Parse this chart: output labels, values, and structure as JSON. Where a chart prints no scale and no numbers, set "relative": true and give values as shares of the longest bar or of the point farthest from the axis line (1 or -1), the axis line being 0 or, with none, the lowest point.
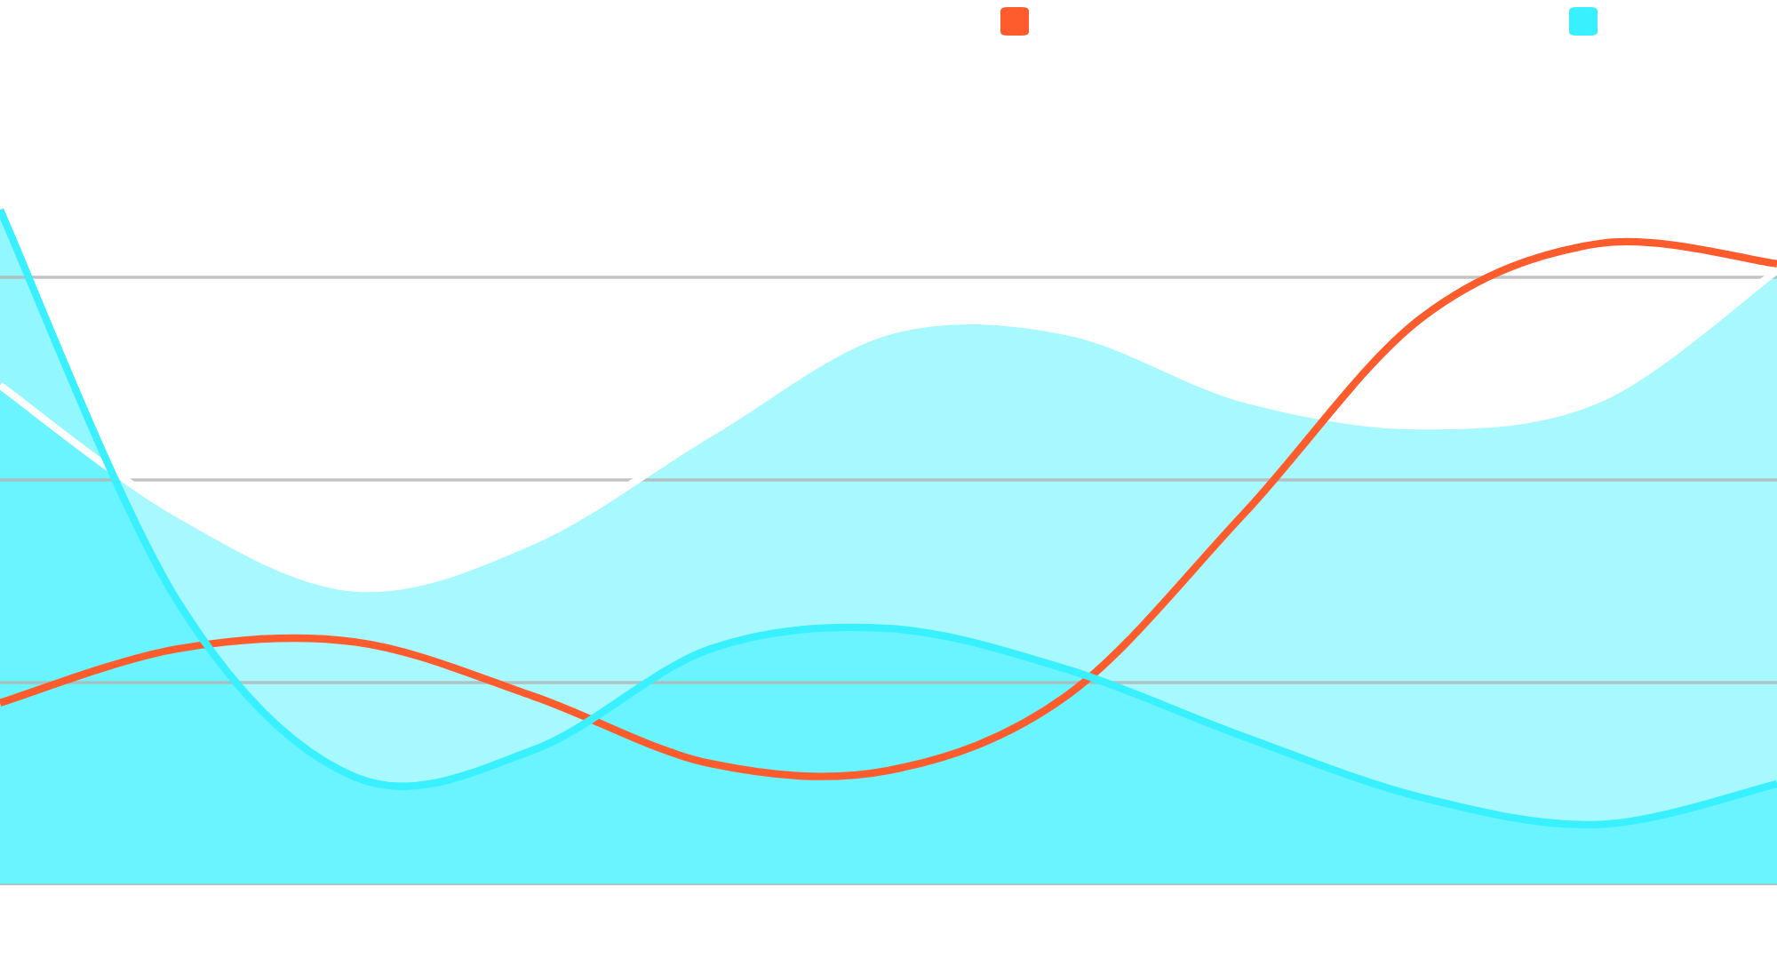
{
  "chart_data": {
    "type": "area",
    "relative": true,
    "categories": [
      null,
      null,
      null,
      null,
      null,
      null,
      null,
      null,
      null,
      null,
      null
    ],
    "series": [
      {
        "color": "#5ef3ff",
        "values": [
          0.74,
          0.55,
          0.44,
          0.51,
          0.67,
          0.82,
          0.82,
          0.72,
          0.68,
          0.72,
          0.91
        ]
      },
      {
        "type": "line",
        "color": "#ff5c2e",
        "values": [
          0.27,
          0.35,
          0.36,
          0.28,
          0.18,
          0.17,
          0.28,
          0.55,
          0.84,
          0.95,
          0.92
        ]
      },
      {
        "color": "#38f0ff",
        "values": [
          1,
          0.42,
          0.16,
          0.2,
          0.35,
          0.38,
          0.32,
          0.22,
          0.13,
          0.09,
          0.15
        ]
      }
    ],
    "grid": "y"
  }
}
